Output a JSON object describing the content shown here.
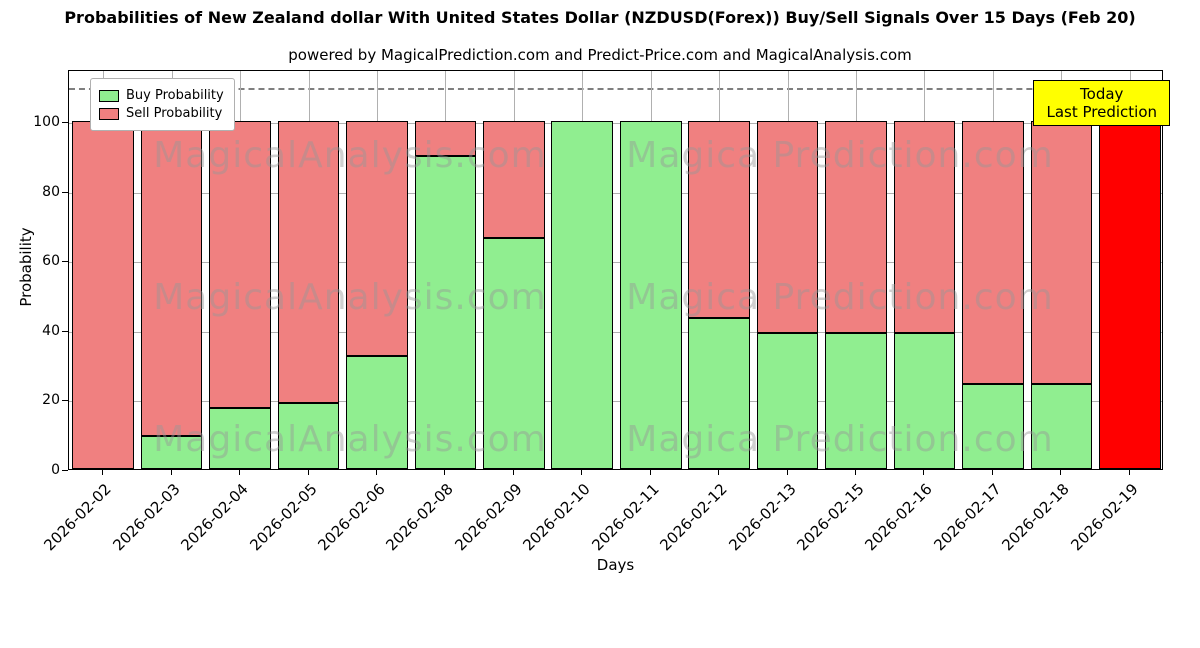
{
  "title": "Probabilities of New Zealand dollar With United States Dollar (NZDUSD(Forex)) Buy/Sell Signals Over 15 Days (Feb 20)",
  "subtitle": "powered by MagicalPrediction.com and Predict-Price.com and MagicalAnalysis.com",
  "chart_data": {
    "type": "bar",
    "stacked": true,
    "title": "Probabilities of New Zealand dollar With United States Dollar (NZDUSD(Forex)) Buy/Sell Signals Over 15 Days (Feb 20)",
    "xlabel": "Days",
    "ylabel": "Probability",
    "ylim": [
      0,
      115
    ],
    "yticks": [
      0,
      20,
      40,
      60,
      80,
      100
    ],
    "grid": true,
    "legend_position": "upper-left",
    "dashed_line_y": 110,
    "bar_edge_color": "#000000",
    "categories": [
      "2026-02-02",
      "2026-02-03",
      "2026-02-04",
      "2026-02-05",
      "2026-02-06",
      "2026-02-08",
      "2026-02-09",
      "2026-02-10",
      "2026-02-11",
      "2026-02-12",
      "2026-02-13",
      "2026-02-15",
      "2026-02-16",
      "2026-02-17",
      "2026-02-18",
      "2026-02-19"
    ],
    "series": [
      {
        "name": "Buy Probability",
        "color": "#90ee90",
        "values": [
          0,
          9.5,
          17.5,
          19,
          32.5,
          90,
          66.5,
          100,
          100,
          43.5,
          39,
          39,
          39,
          24.5,
          24.5,
          0
        ]
      },
      {
        "name": "Sell Probability",
        "color": "#f08080",
        "values": [
          100,
          90.5,
          82.5,
          81,
          67.5,
          10,
          33.5,
          0,
          0,
          56.5,
          61,
          61,
          61,
          75.5,
          75.5,
          100
        ]
      }
    ],
    "today": {
      "index": 15,
      "color": "#ff0000"
    }
  },
  "legend": {
    "items": [
      {
        "label": "Buy Probability",
        "color": "#90ee90"
      },
      {
        "label": "Sell Probability",
        "color": "#f08080"
      }
    ]
  },
  "annotation": {
    "line1": "Today",
    "line2": "Last Prediction",
    "bg": "#ffff00"
  },
  "watermark": {
    "left": "MagicalAnalysis.com",
    "right": "Magica Prediction.com"
  }
}
